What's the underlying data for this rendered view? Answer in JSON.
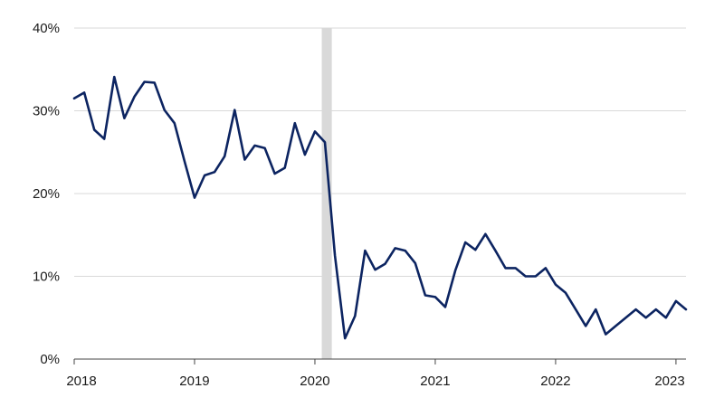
{
  "chart_data": {
    "type": "line",
    "title": "",
    "xlabel": "",
    "ylabel": "",
    "ylim": [
      0,
      40
    ],
    "y_ticks": [
      0,
      10,
      20,
      30,
      40
    ],
    "y_tick_labels": [
      "0%",
      "10%",
      "20%",
      "30%",
      "40%"
    ],
    "x_ticks": [
      2018,
      2019,
      2020,
      2021,
      2022,
      2023
    ],
    "x_tick_labels": [
      "2018",
      "2019",
      "2020",
      "2021",
      "2022",
      "2023"
    ],
    "xlim": [
      "2018-01",
      "2023-02"
    ],
    "grid": "horizontal",
    "legend": "none",
    "colors": {
      "line": "#0c2461",
      "shading": "#d9d9d9",
      "grid": "#d9d9d9",
      "axis": "#444444"
    },
    "shaded_periods": [
      {
        "start": "2020-02",
        "end": "2020-03"
      }
    ],
    "series": [
      {
        "x": [
          "2018-01",
          "2018-02",
          "2018-03",
          "2018-04",
          "2018-05",
          "2018-06",
          "2018-07",
          "2018-08",
          "2018-09",
          "2018-10",
          "2018-11",
          "2018-12",
          "2019-01",
          "2019-02",
          "2019-03",
          "2019-04",
          "2019-05",
          "2019-06",
          "2019-07",
          "2019-08",
          "2019-09",
          "2019-10",
          "2019-11",
          "2019-12",
          "2020-01",
          "2020-02",
          "2020-03",
          "2020-04",
          "2020-05",
          "2020-06",
          "2020-07",
          "2020-08",
          "2020-09",
          "2020-10",
          "2020-11",
          "2020-12",
          "2021-01",
          "2021-02",
          "2021-03",
          "2021-04",
          "2021-05",
          "2021-06",
          "2021-07",
          "2021-08",
          "2021-09",
          "2021-10",
          "2021-11",
          "2021-12",
          "2022-01",
          "2022-02",
          "2022-03",
          "2022-04",
          "2022-05",
          "2022-06",
          "2022-07",
          "2022-08",
          "2022-09",
          "2022-10",
          "2022-11",
          "2022-12",
          "2023-01",
          "2023-02"
        ],
        "values": [
          31.5,
          32.2,
          27.7,
          26.6,
          34.1,
          29.1,
          31.7,
          33.5,
          33.4,
          30.1,
          28.5,
          23.9,
          19.5,
          22.2,
          22.6,
          24.5,
          30.1,
          24.1,
          25.8,
          25.5,
          22.4,
          23.1,
          28.5,
          24.7,
          27.5,
          26.2,
          12.5,
          2.5,
          5.2,
          13.1,
          10.8,
          11.5,
          13.4,
          13.1,
          11.6,
          7.7,
          7.5,
          6.3,
          10.7,
          14.1,
          13.2,
          15.1,
          13.1,
          11.0,
          11.0,
          10.0,
          10.0,
          11.0,
          9.0,
          8.0,
          6.0,
          4.0,
          6.0,
          3.0,
          4.0,
          5.0,
          6.0,
          5.0,
          6.0,
          5.0,
          7.0,
          6.0
        ]
      }
    ]
  }
}
